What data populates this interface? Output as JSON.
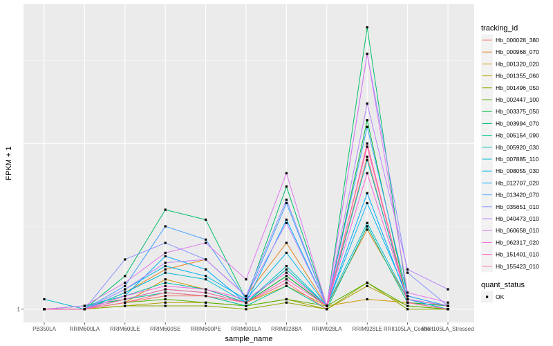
{
  "chart_data": {
    "type": "line",
    "xlabel": "sample_name",
    "ylabel": "FPKM + 1",
    "x": [
      "PB350LA",
      "RRIM600LA",
      "RRIM600LE",
      "RRIM600SE",
      "RRIM600PE",
      "RRIM901LA",
      "RRIM928BA",
      "RRIM928LA",
      "RRIM928LE",
      "RRII105LA_Control",
      "RRII105LA_Stressed"
    ],
    "ylim": [
      0.96,
      1.92
    ],
    "y_ticks": [
      1
    ],
    "y_tick_labels": [
      "1"
    ],
    "grid": true,
    "legend_title": "tracking_id",
    "legend_position": "right",
    "series": [
      {
        "name": "Hb_000028_380",
        "color": "#F8766D",
        "values": [
          1.0,
          1.0,
          1.02,
          1.04,
          1.04,
          1.02,
          1.1,
          1.01,
          1.46,
          1.02,
          1.0
        ]
      },
      {
        "name": "Hb_000968_070",
        "color": "#E7851E",
        "values": [
          1.0,
          1.0,
          1.05,
          1.12,
          1.15,
          1.04,
          1.2,
          1.01,
          1.24,
          1.03,
          1.01
        ]
      },
      {
        "name": "Hb_001320_020",
        "color": "#D09400",
        "values": [
          1.0,
          1.0,
          1.02,
          1.09,
          1.06,
          1.02,
          1.07,
          1.01,
          1.03,
          1.02,
          1.01
        ]
      },
      {
        "name": "Hb_001355_060",
        "color": "#B2A100",
        "values": [
          1.0,
          1.0,
          1.01,
          1.02,
          1.02,
          1.01,
          1.03,
          1.0,
          1.07,
          1.01,
          1.0
        ]
      },
      {
        "name": "Hb_001496_050",
        "color": "#8BAB00",
        "values": [
          1.0,
          1.0,
          1.01,
          1.01,
          1.01,
          1.0,
          1.02,
          1.0,
          1.08,
          1.0,
          1.0
        ]
      },
      {
        "name": "Hb_002447_100",
        "color": "#55B400",
        "values": [
          1.0,
          1.0,
          1.02,
          1.03,
          1.02,
          1.01,
          1.03,
          1.01,
          1.08,
          1.01,
          1.0
        ]
      },
      {
        "name": "Hb_003375_050",
        "color": "#00BA38",
        "values": [
          1.0,
          1.01,
          1.03,
          1.06,
          1.05,
          1.02,
          1.1,
          1.01,
          1.57,
          1.02,
          1.01
        ]
      },
      {
        "name": "Hb_003994_070",
        "color": "#00BE6C",
        "values": [
          1.0,
          1.0,
          1.1,
          1.3,
          1.27,
          1.03,
          1.37,
          1.01,
          1.85,
          1.03,
          1.0
        ]
      },
      {
        "name": "Hb_005154_090",
        "color": "#00C094",
        "values": [
          1.0,
          1.0,
          1.03,
          1.05,
          1.04,
          1.01,
          1.07,
          1.0,
          1.25,
          1.02,
          1.0
        ]
      },
      {
        "name": "Hb_005920_030",
        "color": "#00C0B5",
        "values": [
          1.0,
          1.01,
          1.04,
          1.08,
          1.06,
          1.02,
          1.12,
          1.01,
          1.45,
          1.03,
          1.01
        ]
      },
      {
        "name": "Hb_007885_110",
        "color": "#00BCD1",
        "values": [
          1.03,
          1.0,
          1.05,
          1.11,
          1.09,
          1.02,
          1.13,
          1.01,
          1.26,
          1.03,
          1.01
        ]
      },
      {
        "name": "Hb_008055_030",
        "color": "#00B6EB",
        "values": [
          1.0,
          1.0,
          1.06,
          1.13,
          1.1,
          1.03,
          1.17,
          1.01,
          1.32,
          1.04,
          1.01
        ]
      },
      {
        "name": "Hb_012707_020",
        "color": "#00A9FF",
        "values": [
          1.0,
          1.0,
          1.04,
          1.16,
          1.12,
          1.02,
          1.27,
          1.01,
          1.35,
          1.03,
          1.0
        ]
      },
      {
        "name": "Hb_013420_070",
        "color": "#3F9FFF",
        "values": [
          1.0,
          1.0,
          1.07,
          1.25,
          1.21,
          1.03,
          1.32,
          1.01,
          1.55,
          1.04,
          1.01
        ]
      },
      {
        "name": "Hb_035651_010",
        "color": "#8B93FF",
        "values": [
          1.0,
          1.0,
          1.15,
          1.2,
          1.15,
          1.04,
          1.33,
          1.01,
          1.77,
          1.11,
          1.01
        ]
      },
      {
        "name": "Hb_040473_010",
        "color": "#B983FF",
        "values": [
          1.0,
          1.0,
          1.06,
          1.14,
          1.15,
          1.04,
          1.26,
          1.01,
          1.62,
          1.12,
          1.06
        ]
      },
      {
        "name": "Hb_060658_010",
        "color": "#E076F1",
        "values": [
          1.0,
          1.01,
          1.08,
          1.17,
          1.2,
          1.09,
          1.41,
          1.01,
          1.77,
          1.05,
          1.02
        ]
      },
      {
        "name": "Hb_062317_020",
        "color": "#F766DD",
        "values": [
          1.0,
          1.0,
          1.04,
          1.07,
          1.06,
          1.03,
          1.11,
          1.01,
          1.41,
          1.03,
          1.01
        ]
      },
      {
        "name": "Hb_151401_010",
        "color": "#FF62BC",
        "values": [
          1.0,
          1.0,
          1.03,
          1.06,
          1.05,
          1.02,
          1.09,
          1.01,
          1.49,
          1.02,
          1.0
        ]
      },
      {
        "name": "Hb_155423_010",
        "color": "#FF6C92",
        "values": [
          1.0,
          1.0,
          1.02,
          1.05,
          1.04,
          1.02,
          1.08,
          1.0,
          1.5,
          1.02,
          1.0
        ]
      }
    ],
    "shape_legend": {
      "title": "quant_status",
      "entries": [
        "OK"
      ]
    }
  }
}
